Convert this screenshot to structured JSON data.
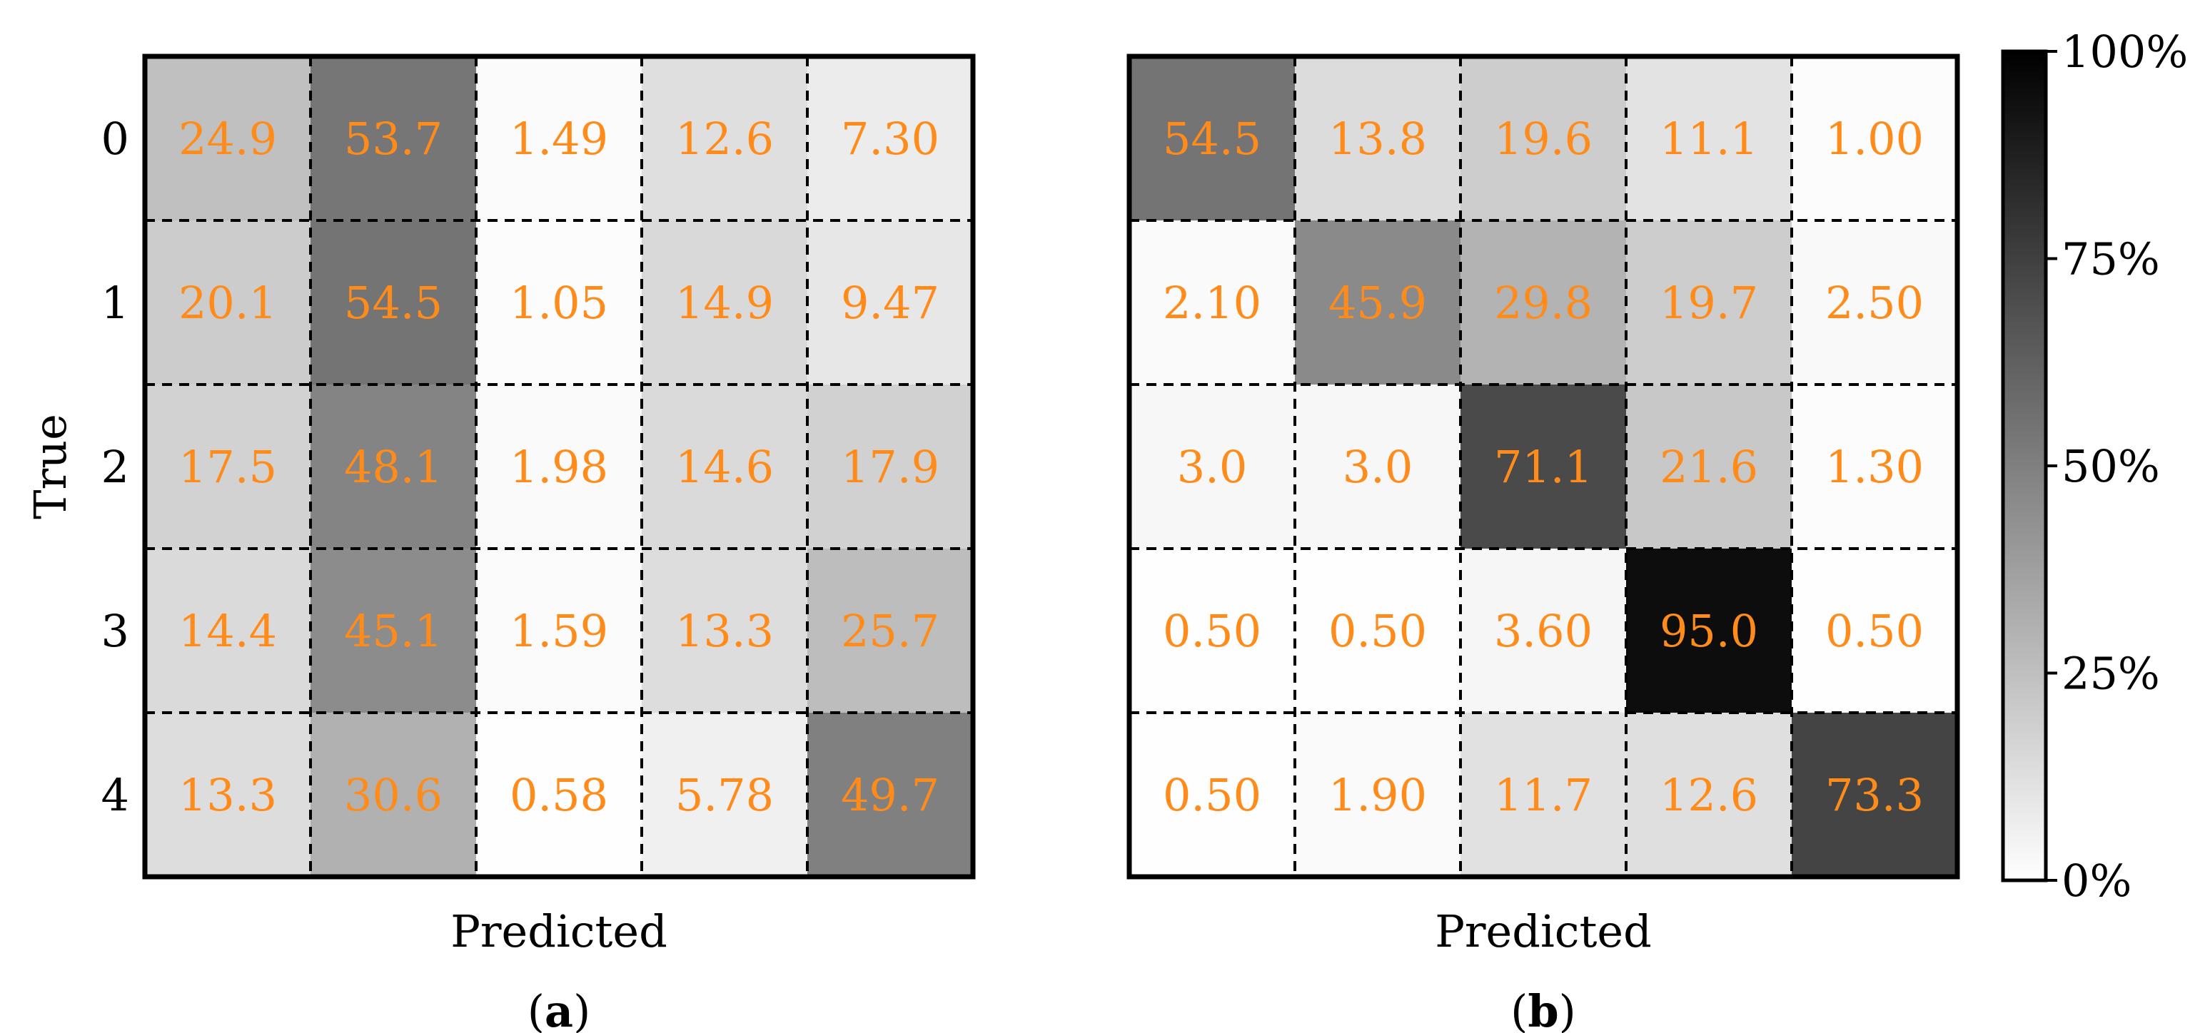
{
  "chart_data": [
    {
      "type": "heatmap",
      "panel_label": "(a)",
      "xlabel": "Predicted",
      "ylabel": "True",
      "row_labels": [
        "0",
        "1",
        "2",
        "3",
        "4"
      ],
      "values": [
        [
          "24.9",
          "53.7",
          "1.49",
          "12.6",
          "7.30"
        ],
        [
          "20.1",
          "54.5",
          "1.05",
          "14.9",
          "9.47"
        ],
        [
          "17.5",
          "48.1",
          "1.98",
          "14.6",
          "17.9"
        ],
        [
          "14.4",
          "45.1",
          "1.59",
          "13.3",
          "25.7"
        ],
        [
          "13.3",
          "30.6",
          "0.58",
          "5.78",
          "49.7"
        ]
      ],
      "grid": "dashed",
      "annotation_color": "#ff8c1a"
    },
    {
      "type": "heatmap",
      "panel_label": "(b)",
      "xlabel": "Predicted",
      "ylabel": "",
      "row_labels": [],
      "values": [
        [
          "54.5",
          "13.8",
          "19.6",
          "11.1",
          "1.00"
        ],
        [
          "2.10",
          "45.9",
          "29.8",
          "19.7",
          "2.50"
        ],
        [
          "3.0",
          "3.0",
          "71.1",
          "21.6",
          "1.30"
        ],
        [
          "0.50",
          "0.50",
          "3.60",
          "95.0",
          "0.50"
        ],
        [
          "0.50",
          "1.90",
          "11.7",
          "12.6",
          "73.3"
        ]
      ],
      "grid": "dashed",
      "annotation_color": "#ff8c1a"
    }
  ],
  "colorbar": {
    "range": [
      0,
      100
    ],
    "colormap": "greys",
    "tick_values": [
      0,
      25,
      50,
      75,
      100
    ],
    "tick_labels": [
      "0%",
      "25%",
      "50%",
      "75%",
      "100%"
    ]
  }
}
